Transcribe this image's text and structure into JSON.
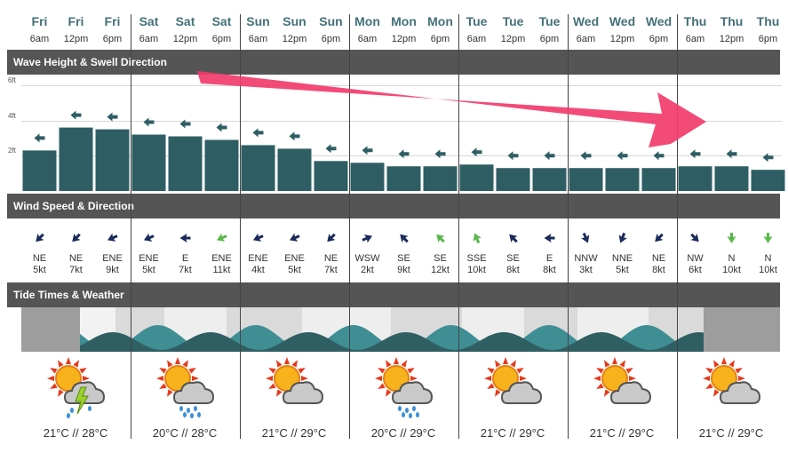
{
  "columns": [
    {
      "day": "Fri",
      "time": "6am",
      "wave": 2.3,
      "swell_angle": 225,
      "wind_dir": "NE",
      "wind_speed": "5kt",
      "wind_angle": 225,
      "wind_color": "#1a2a5a"
    },
    {
      "day": "Fri",
      "time": "12pm",
      "wave": 3.6,
      "swell_angle": 225,
      "wind_dir": "NE",
      "wind_speed": "7kt",
      "wind_angle": 225,
      "wind_color": "#1a2a5a"
    },
    {
      "day": "Fri",
      "time": "6pm",
      "wave": 3.5,
      "swell_angle": 225,
      "wind_dir": "ENE",
      "wind_speed": "9kt",
      "wind_angle": 247,
      "wind_color": "#1a2a5a"
    },
    {
      "day": "Sat",
      "time": "6am",
      "wave": 3.2,
      "swell_angle": 225,
      "wind_dir": "ENE",
      "wind_speed": "5kt",
      "wind_angle": 247,
      "wind_color": "#1a2a5a"
    },
    {
      "day": "Sat",
      "time": "12pm",
      "wave": 3.1,
      "swell_angle": 225,
      "wind_dir": "E",
      "wind_speed": "7kt",
      "wind_angle": 270,
      "wind_color": "#1a2a5a"
    },
    {
      "day": "Sat",
      "time": "6pm",
      "wave": 2.9,
      "swell_angle": 225,
      "wind_dir": "ENE",
      "wind_speed": "11kt",
      "wind_angle": 247,
      "wind_color": "#59b84a"
    },
    {
      "day": "Sun",
      "time": "6am",
      "wave": 2.6,
      "swell_angle": 225,
      "wind_dir": "ENE",
      "wind_speed": "4kt",
      "wind_angle": 247,
      "wind_color": "#1a2a5a"
    },
    {
      "day": "Sun",
      "time": "12pm",
      "wave": 2.4,
      "swell_angle": 225,
      "wind_dir": "ENE",
      "wind_speed": "5kt",
      "wind_angle": 247,
      "wind_color": "#1a2a5a"
    },
    {
      "day": "Sun",
      "time": "6pm",
      "wave": 1.7,
      "swell_angle": 225,
      "wind_dir": "NE",
      "wind_speed": "7kt",
      "wind_angle": 225,
      "wind_color": "#1a2a5a"
    },
    {
      "day": "Mon",
      "time": "6am",
      "wave": 1.6,
      "swell_angle": 225,
      "wind_dir": "WSW",
      "wind_speed": "2kt",
      "wind_angle": 67,
      "wind_color": "#1a2a5a"
    },
    {
      "day": "Mon",
      "time": "12pm",
      "wave": 1.4,
      "swell_angle": 225,
      "wind_dir": "SE",
      "wind_speed": "9kt",
      "wind_angle": 315,
      "wind_color": "#1a2a5a"
    },
    {
      "day": "Mon",
      "time": "6pm",
      "wave": 1.4,
      "swell_angle": 225,
      "wind_dir": "SE",
      "wind_speed": "12kt",
      "wind_angle": 315,
      "wind_color": "#59b84a"
    },
    {
      "day": "Tue",
      "time": "6am",
      "wave": 1.5,
      "swell_angle": 225,
      "wind_dir": "SSE",
      "wind_speed": "10kt",
      "wind_angle": 337,
      "wind_color": "#59b84a"
    },
    {
      "day": "Tue",
      "time": "12pm",
      "wave": 1.3,
      "swell_angle": 225,
      "wind_dir": "SE",
      "wind_speed": "8kt",
      "wind_angle": 315,
      "wind_color": "#1a2a5a"
    },
    {
      "day": "Tue",
      "time": "6pm",
      "wave": 1.3,
      "swell_angle": 225,
      "wind_dir": "E",
      "wind_speed": "8kt",
      "wind_angle": 270,
      "wind_color": "#1a2a5a"
    },
    {
      "day": "Wed",
      "time": "6am",
      "wave": 1.3,
      "swell_angle": 225,
      "wind_dir": "NNW",
      "wind_speed": "3kt",
      "wind_angle": 157,
      "wind_color": "#1a2a5a"
    },
    {
      "day": "Wed",
      "time": "12pm",
      "wave": 1.3,
      "swell_angle": 225,
      "wind_dir": "NNE",
      "wind_speed": "5kt",
      "wind_angle": 202,
      "wind_color": "#1a2a5a"
    },
    {
      "day": "Wed",
      "time": "6pm",
      "wave": 1.3,
      "swell_angle": 225,
      "wind_dir": "NE",
      "wind_speed": "8kt",
      "wind_angle": 225,
      "wind_color": "#1a2a5a"
    },
    {
      "day": "Thu",
      "time": "6am",
      "wave": 1.4,
      "swell_angle": 225,
      "wind_dir": "NW",
      "wind_speed": "6kt",
      "wind_angle": 135,
      "wind_color": "#1a2a5a"
    },
    {
      "day": "Thu",
      "time": "12pm",
      "wave": 1.4,
      "swell_angle": 225,
      "wind_dir": "N",
      "wind_speed": "10kt",
      "wind_angle": 180,
      "wind_color": "#59b84a"
    },
    {
      "day": "Thu",
      "time": "6pm",
      "wave": 1.2,
      "swell_angle": 225,
      "wind_dir": "N",
      "wind_speed": "10kt",
      "wind_angle": 180,
      "wind_color": "#59b84a"
    }
  ],
  "sections": {
    "wave": "Wave Height & Swell Direction",
    "wind": "Wind Speed & Direction",
    "tide": "Tide Times & Weather"
  },
  "wave_axis": {
    "labels": [
      "6ft",
      "4ft",
      "2ft"
    ],
    "max": 6
  },
  "days": [
    {
      "temp": "21°C // 28°C",
      "weather_icon": "thunderstorm-icon"
    },
    {
      "temp": "20°C // 28°C",
      "weather_icon": "rain-icon"
    },
    {
      "temp": "21°C // 29°C",
      "weather_icon": "partly-cloudy-icon"
    },
    {
      "temp": "20°C // 29°C",
      "weather_icon": "rain-icon"
    },
    {
      "temp": "21°C // 29°C",
      "weather_icon": "partly-cloudy-icon"
    },
    {
      "temp": "21°C // 29°C",
      "weather_icon": "partly-cloudy-icon"
    },
    {
      "temp": "21°C // 29°C",
      "weather_icon": "partly-cloudy-icon"
    }
  ],
  "colors": {
    "wave_bar": "#2e5e64",
    "tide_dark": "#2f5f63",
    "tide_light": "#3f8e94",
    "arrow_annotation": "#f23c6c",
    "header_bg": "#555555"
  }
}
